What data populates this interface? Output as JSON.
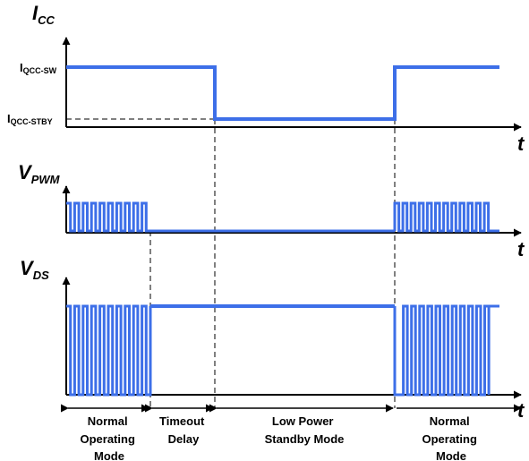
{
  "axes": {
    "icc": {
      "main": "I",
      "sub": "CC"
    },
    "vpwm": {
      "main": "V",
      "sub": "PWM"
    },
    "vds": {
      "main": "V",
      "sub": "DS"
    },
    "time_label": "t"
  },
  "levels": {
    "sw": {
      "main": "I",
      "sub": "QCC-SW"
    },
    "stby": {
      "main": "I",
      "sub": "QCC-STBY"
    }
  },
  "phases": [
    {
      "lines": [
        "Normal",
        "Operating",
        "Mode"
      ]
    },
    {
      "lines": [
        "Timeout",
        "Delay"
      ]
    },
    {
      "lines": [
        "Low Power",
        "Standby Mode"
      ]
    },
    {
      "lines": [
        "Normal",
        "Operating",
        "Mode"
      ]
    }
  ],
  "colors": {
    "waveform": "#3d6fe8",
    "axis": "#000000"
  }
}
